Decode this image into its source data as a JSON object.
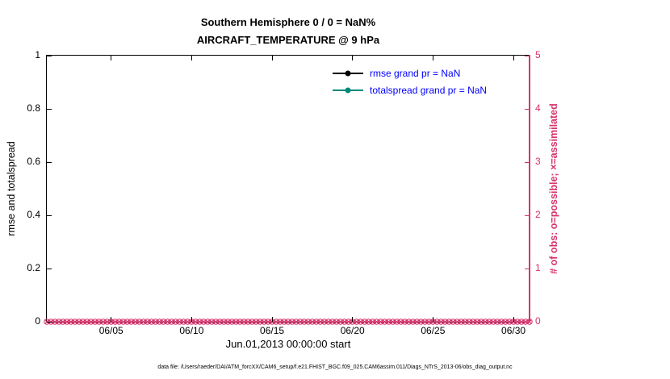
{
  "figure": {
    "title": "Southern Hemisphere 0 / 0 = NaN%",
    "subtitle": "AIRCRAFT_TEMPERATURE @ 9 hPa"
  },
  "axes": {
    "left": {
      "label": "rmse and totalspread"
    },
    "right": {
      "label": "# of obs: o=possible; ×=assimilated",
      "color": "#d6336c"
    },
    "x": {
      "label": "Jun.01,2013 00:00:00 start"
    }
  },
  "legend": {
    "text_color": "#0000ff",
    "entries": [
      {
        "label": "rmse grand pr = NaN",
        "color": "#000000"
      },
      {
        "label": "totalspread grand pr = NaN",
        "color": "#00897b"
      }
    ]
  },
  "footer": "data file: /Users/raeder/DAI/ATM_forcXX/CAM6_setup/f.e21.FHIST_BGC.f09_025.CAM6assim.011/Diags_NTrS_2013-06/obs_diag_output.nc",
  "chart_data": {
    "type": "line",
    "title": "Southern Hemisphere 0 / 0 = NaN%",
    "subtitle": "AIRCRAFT_TEMPERATURE @ 9 hPa",
    "xlabel": "Jun.01,2013 00:00:00 start",
    "ylabel_left": "rmse and totalspread",
    "ylabel_right": "# of obs: o=possible; ×=assimilated",
    "ylim_left": [
      0,
      1
    ],
    "ylim_right": [
      0,
      5
    ],
    "x_axis_days": [
      1,
      31
    ],
    "x_tick_days": [
      5,
      10,
      15,
      20,
      25,
      30
    ],
    "x_tick_labels": [
      "06/05",
      "06/10",
      "06/15",
      "06/20",
      "06/25",
      "06/30"
    ],
    "left_tick_values": [
      0,
      0.2,
      0.4,
      0.6,
      0.8,
      1
    ],
    "left_tick_labels": [
      "0",
      "0.2",
      "0.4",
      "0.6",
      "0.8",
      "1"
    ],
    "right_tick_values": [
      0,
      1,
      2,
      3,
      4,
      5
    ],
    "right_tick_labels": [
      "0",
      "1",
      "2",
      "3",
      "4",
      "5"
    ],
    "grid": false,
    "legend_position": "inside upper right, no box",
    "series": [
      {
        "name": "rmse grand pr = NaN",
        "axis": "left",
        "color": "#000000",
        "values": [],
        "all_nan": true
      },
      {
        "name": "totalspread grand pr = NaN",
        "axis": "left",
        "color": "#00897b",
        "values": [],
        "all_nan": true
      },
      {
        "name": "# of obs possible",
        "axis": "right",
        "marker": "o",
        "color": "#d6336c",
        "constant_value": 0,
        "n_points": 121,
        "start_day": 1,
        "interval_days": 0.25
      },
      {
        "name": "# of obs assimilated",
        "axis": "right",
        "marker": "*",
        "color": "#d6336c",
        "constant_value": 0,
        "n_points": 121,
        "start_day": 1,
        "interval_days": 0.25
      }
    ]
  }
}
